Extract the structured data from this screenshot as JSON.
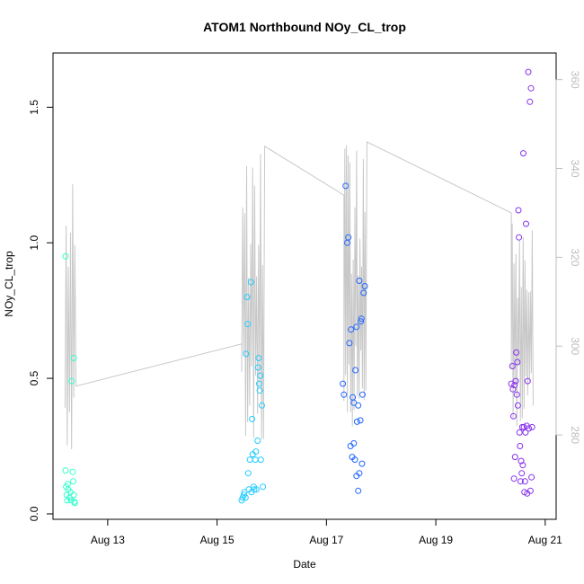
{
  "chart_data": {
    "type": "scatter",
    "title": "ATOM1 Northbound NOy_CL_trop",
    "xlabel": "Date",
    "ylabel": "NOy_CL_trop",
    "x_ticks": [
      "Aug 13",
      "Aug 15",
      "Aug 17",
      "Aug 19",
      "Aug 21"
    ],
    "x_range_days": [
      12.0,
      21.2
    ],
    "y_ticks": [
      "0.0",
      "0.5",
      "1.0",
      "1.5"
    ],
    "ylim": [
      -0.02,
      1.7
    ],
    "y2_ticks": [
      "280",
      "300",
      "320",
      "340",
      "360"
    ],
    "y2lim": [
      261.0,
      366.0
    ],
    "secondary_line_color": "#c8c8c8",
    "series": [
      {
        "color": "#33ffcc",
        "points": [
          [
            12.23,
            0.95
          ],
          [
            12.23,
            0.16
          ],
          [
            12.24,
            0.1
          ],
          [
            12.25,
            0.07
          ],
          [
            12.26,
            0.05
          ],
          [
            12.27,
            0.11
          ],
          [
            12.28,
            0.09
          ],
          [
            12.3,
            0.06
          ],
          [
            12.32,
            0.08
          ],
          [
            12.33,
            0.05
          ],
          [
            12.34,
            0.49
          ],
          [
            12.36,
            0.155
          ],
          [
            12.37,
            0.12
          ],
          [
            12.38,
            0.575
          ],
          [
            12.38,
            0.07
          ],
          [
            12.39,
            0.045
          ],
          [
            12.4,
            0.04
          ]
        ]
      },
      {
        "color": "#22ccff",
        "points": [
          [
            15.45,
            0.05
          ],
          [
            15.47,
            0.06
          ],
          [
            15.49,
            0.07
          ],
          [
            15.5,
            0.08
          ],
          [
            15.52,
            0.06
          ],
          [
            15.53,
            0.59
          ],
          [
            15.55,
            0.8
          ],
          [
            15.56,
            0.7
          ],
          [
            15.57,
            0.15
          ],
          [
            15.58,
            0.09
          ],
          [
            15.6,
            0.2
          ],
          [
            15.62,
            0.855
          ],
          [
            15.63,
            0.08
          ],
          [
            15.64,
            0.35
          ],
          [
            15.65,
            0.22
          ],
          [
            15.67,
            0.1
          ],
          [
            15.68,
            0.09
          ],
          [
            15.7,
            0.2
          ],
          [
            15.71,
            0.23
          ],
          [
            15.72,
            0.09
          ],
          [
            15.74,
            0.27
          ],
          [
            15.75,
            0.54
          ],
          [
            15.76,
            0.575
          ],
          [
            15.77,
            0.48
          ],
          [
            15.78,
            0.455
          ],
          [
            15.79,
            0.51
          ],
          [
            15.8,
            0.2
          ],
          [
            15.82,
            0.4
          ],
          [
            15.84,
            0.1
          ]
        ]
      },
      {
        "color": "#2266ff",
        "points": [
          [
            17.35,
            1.21
          ],
          [
            17.38,
            1.0
          ],
          [
            17.4,
            1.02
          ],
          [
            17.42,
            0.63
          ],
          [
            17.44,
            0.25
          ],
          [
            17.45,
            0.68
          ],
          [
            17.47,
            0.21
          ],
          [
            17.48,
            0.43
          ],
          [
            17.5,
            0.26
          ],
          [
            17.5,
            0.41
          ],
          [
            17.52,
            0.2
          ],
          [
            17.53,
            0.53
          ],
          [
            17.55,
            0.69
          ],
          [
            17.56,
            0.34
          ],
          [
            17.58,
            0.4
          ],
          [
            17.6,
            0.86
          ],
          [
            17.62,
            0.345
          ],
          [
            17.63,
            0.71
          ],
          [
            17.64,
            0.72
          ],
          [
            17.65,
            0.185
          ],
          [
            17.66,
            0.44
          ],
          [
            17.68,
            0.815
          ],
          [
            17.7,
            0.84
          ],
          [
            17.3,
            0.48
          ],
          [
            17.32,
            0.44
          ],
          [
            17.55,
            0.14
          ],
          [
            17.58,
            0.085
          ],
          [
            17.6,
            0.15
          ]
        ]
      },
      {
        "color": "#8833ee",
        "points": [
          [
            20.38,
            0.48
          ],
          [
            20.4,
            0.545
          ],
          [
            20.41,
            0.46
          ],
          [
            20.42,
            0.36
          ],
          [
            20.43,
            0.13
          ],
          [
            20.44,
            0.475
          ],
          [
            20.45,
            0.21
          ],
          [
            20.46,
            0.49
          ],
          [
            20.47,
            0.595
          ],
          [
            20.48,
            0.44
          ],
          [
            20.49,
            0.56
          ],
          [
            20.5,
            0.4
          ],
          [
            20.51,
            1.12
          ],
          [
            20.52,
            1.02
          ],
          [
            20.53,
            0.3
          ],
          [
            20.54,
            0.25
          ],
          [
            20.55,
            0.12
          ],
          [
            20.56,
            0.195
          ],
          [
            20.57,
            0.15
          ],
          [
            20.58,
            0.32
          ],
          [
            20.59,
            0.18
          ],
          [
            20.6,
            1.33
          ],
          [
            20.61,
            0.32
          ],
          [
            20.62,
            0.08
          ],
          [
            20.63,
            0.12
          ],
          [
            20.64,
            0.3
          ],
          [
            20.65,
            1.07
          ],
          [
            20.66,
            0.325
          ],
          [
            20.67,
            0.075
          ],
          [
            20.68,
            0.49
          ],
          [
            20.69,
            1.63
          ],
          [
            20.7,
            0.315
          ],
          [
            20.72,
            1.52
          ],
          [
            20.73,
            0.085
          ],
          [
            20.74,
            1.57
          ],
          [
            20.75,
            0.135
          ],
          [
            20.76,
            0.32
          ]
        ]
      }
    ]
  }
}
